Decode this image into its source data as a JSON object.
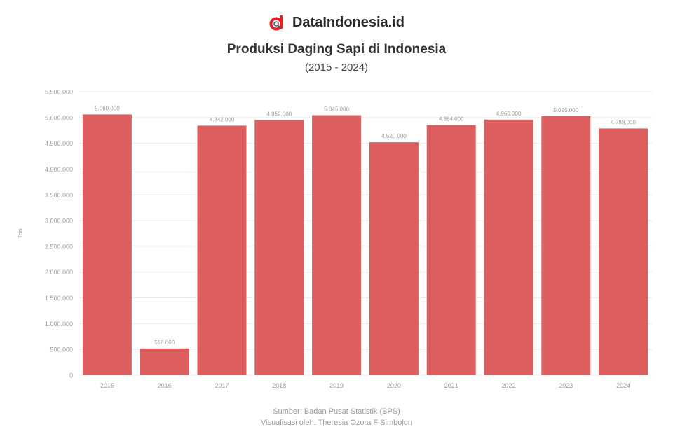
{
  "brand": {
    "name": "DataIndonesia.id",
    "logo_icon": "dataindonesia-logo-icon",
    "logo_color": "#e31f26"
  },
  "colors": {
    "bar": "#dd5e5e",
    "grid": "#ebebeb",
    "axis_text": "#9a9a9a",
    "label_text": "#9a9a9a"
  },
  "footer": {
    "source": "Sumber: Badan Pusat Statistik (BPS)",
    "visualized": "Visualisasi oleh: Theresia Ozora F Simbolon"
  },
  "chart_data": {
    "type": "bar",
    "title": "Produksi Daging Sapi di Indonesia",
    "subtitle": "(2015 - 2024)",
    "xlabel": "",
    "ylabel": "Ton",
    "ylim": [
      0,
      5500000
    ],
    "yticks": [
      0,
      500000,
      1000000,
      1500000,
      2000000,
      2500000,
      3000000,
      3500000,
      4000000,
      4500000,
      5000000,
      5500000
    ],
    "ytick_labels": [
      "0",
      "500.000",
      "1.000.000",
      "1.500.000",
      "2.000.000",
      "2.500.000",
      "3.000.000",
      "3.500.000",
      "4.000.000",
      "4.500.000",
      "5.000.000",
      "5.500.000"
    ],
    "grid": true,
    "legend": "none",
    "categories": [
      "2015",
      "2016",
      "2017",
      "2018",
      "2019",
      "2020",
      "2021",
      "2022",
      "2023",
      "2024"
    ],
    "values": [
      5060000,
      518000,
      4842000,
      4952000,
      5045000,
      4520000,
      4854000,
      4960000,
      5025000,
      4788000
    ],
    "value_labels": [
      "5.060.000",
      "518.000",
      "4.842.000",
      "4.952.000",
      "5.045.000",
      "4.520.000",
      "4.854.000",
      "4.960.000",
      "5.025.000",
      "4.788.000"
    ]
  }
}
